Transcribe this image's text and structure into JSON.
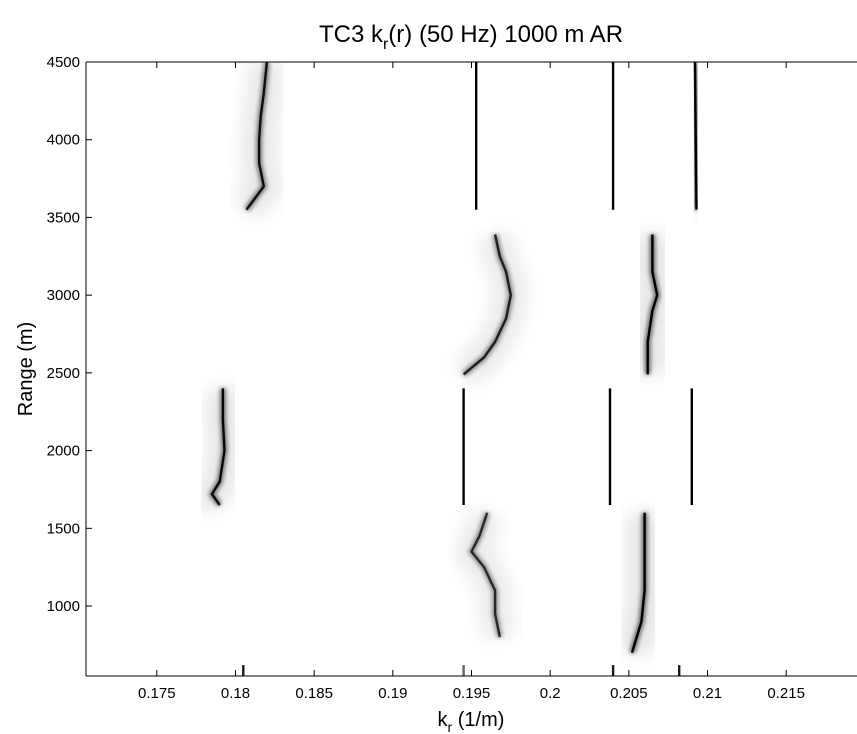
{
  "chart_data": {
    "type": "heatmap",
    "title_main": "TC3 k",
    "title_sub": "r",
    "title_rest": "(r) (50 Hz) 1000 m AR",
    "xlabel_main": "k",
    "xlabel_sub": "r",
    "xlabel_rest": " (1/m)",
    "ylabel": "Range (m)",
    "xlim": [
      0.1705,
      0.2195
    ],
    "ylim": [
      550,
      4500
    ],
    "xticks": [
      0.175,
      0.18,
      0.185,
      0.19,
      0.195,
      0.2,
      0.205,
      0.21,
      0.215
    ],
    "xtick_labels": [
      "0.175",
      "0.18",
      "0.185",
      "0.19",
      "0.195",
      "0.2",
      "0.205",
      "0.21",
      "0.215"
    ],
    "yticks": [
      1000,
      1500,
      2000,
      2500,
      3000,
      3500,
      4000,
      4500
    ],
    "ytick_labels": [
      "1000",
      "1500",
      "2000",
      "2500",
      "3000",
      "3500",
      "4000",
      "4500"
    ],
    "colormap": "gray-reversed",
    "mark_color": "#000000",
    "segments": [
      {
        "name": "",
        "range": [
          3550,
          4500
        ],
        "modes": [
          {
            "kr": [
              [
                3550,
                0.1807
              ],
              [
                3700,
                0.1818
              ],
              [
                3850,
                0.1815
              ],
              [
                4000,
                0.1815
              ],
              [
                4150,
                0.1816
              ],
              [
                4300,
                0.1818
              ],
              [
                4500,
                0.182
              ]
            ],
            "intensity": 0.9
          },
          {
            "kr": [
              [
                3550,
                0.1953
              ],
              [
                4500,
                0.1953
              ]
            ],
            "intensity": 1.0
          },
          {
            "kr": [
              [
                3550,
                0.204
              ],
              [
                4500,
                0.204
              ]
            ],
            "intensity": 1.0
          },
          {
            "kr": [
              [
                3550,
                0.2093
              ],
              [
                4500,
                0.2092
              ]
            ],
            "intensity": 1.0
          }
        ]
      },
      {
        "name": "",
        "range": [
          2490,
          3390
        ],
        "modes": [
          {
            "kr": [
              [
                2490,
                0.1945
              ],
              [
                2600,
                0.1958
              ],
              [
                2700,
                0.1965
              ],
              [
                2850,
                0.1972
              ],
              [
                3000,
                0.1975
              ],
              [
                3150,
                0.1972
              ],
              [
                3250,
                0.1968
              ],
              [
                3390,
                0.1965
              ]
            ],
            "intensity": 0.8
          },
          {
            "kr": [
              [
                2490,
                0.2062
              ],
              [
                2700,
                0.2062
              ],
              [
                2900,
                0.2065
              ],
              [
                3000,
                0.2068
              ],
              [
                3150,
                0.2065
              ],
              [
                3390,
                0.2065
              ]
            ],
            "intensity": 1.0
          }
        ]
      },
      {
        "name": "",
        "range": [
          1650,
          2400
        ],
        "modes": [
          {
            "kr": [
              [
                1650,
                0.179
              ],
              [
                1720,
                0.1785
              ],
              [
                1800,
                0.179
              ],
              [
                2000,
                0.1793
              ],
              [
                2200,
                0.1792
              ],
              [
                2400,
                0.1792
              ]
            ],
            "intensity": 0.95
          },
          {
            "kr": [
              [
                1650,
                0.1945
              ],
              [
                2400,
                0.1945
              ]
            ],
            "intensity": 1.0
          },
          {
            "kr": [
              [
                1650,
                0.2038
              ],
              [
                2400,
                0.2038
              ]
            ],
            "intensity": 1.0
          },
          {
            "kr": [
              [
                1650,
                0.209
              ],
              [
                2400,
                0.209
              ]
            ],
            "intensity": 1.0
          }
        ]
      },
      {
        "name": "",
        "range": [
          560,
          1600
        ],
        "modes": [
          {
            "kr": [
              [
                800,
                0.1968
              ],
              [
                950,
                0.1965
              ],
              [
                1100,
                0.1965
              ],
              [
                1250,
                0.1958
              ],
              [
                1350,
                0.195
              ],
              [
                1450,
                0.1955
              ],
              [
                1600,
                0.196
              ]
            ],
            "intensity": 0.75
          },
          {
            "kr": [
              [
                700,
                0.2052
              ],
              [
                900,
                0.2058
              ],
              [
                1100,
                0.206
              ],
              [
                1350,
                0.206
              ],
              [
                1600,
                0.206
              ]
            ],
            "intensity": 1.0
          }
        ]
      },
      {
        "name": "",
        "range": [
          550,
          620
        ],
        "modes": [
          {
            "kr": [
              [
                550,
                0.1805
              ],
              [
                620,
                0.1805
              ]
            ],
            "intensity": 0.9
          },
          {
            "kr": [
              [
                550,
                0.1945
              ],
              [
                620,
                0.1945
              ]
            ],
            "intensity": 0.6
          },
          {
            "kr": [
              [
                550,
                0.204
              ],
              [
                620,
                0.204
              ]
            ],
            "intensity": 0.9
          },
          {
            "kr": [
              [
                550,
                0.2082
              ],
              [
                620,
                0.2082
              ]
            ],
            "intensity": 0.9
          }
        ]
      }
    ],
    "grid": false
  }
}
